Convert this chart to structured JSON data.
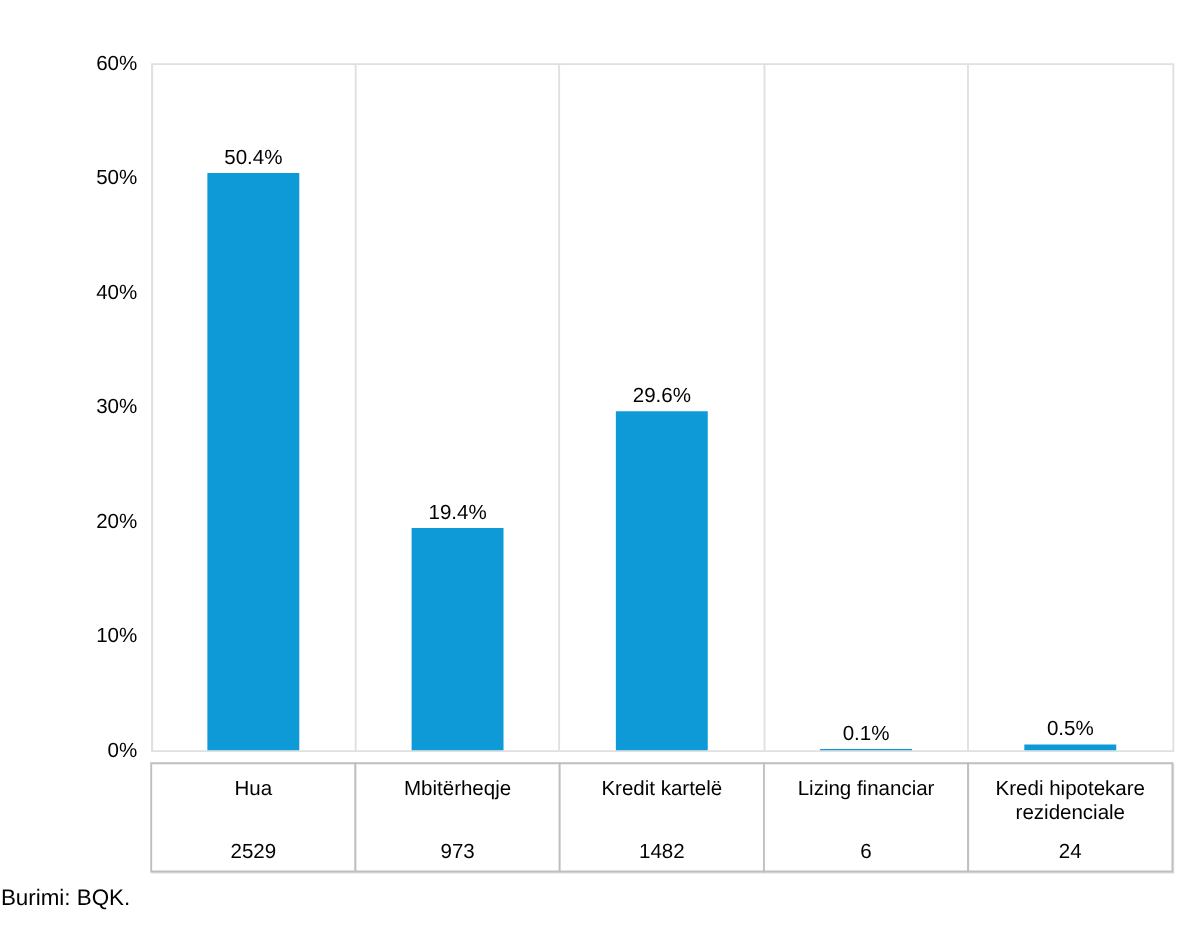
{
  "chart_data": {
    "type": "bar",
    "categories": [
      "Hua",
      "Mbitërheqje",
      "Kredit kartelë",
      "Lizing financiar",
      "Kredi hipotekare rezidenciale"
    ],
    "values": [
      50.4,
      19.4,
      29.6,
      0.1,
      0.5
    ],
    "value_labels": [
      "50.4%",
      "19.4%",
      "29.6%",
      "0.1%",
      "0.5%"
    ],
    "color": "#0e9ad7",
    "ylim": [
      0,
      60
    ],
    "yticks": [
      {
        "value": 0,
        "label": "0%"
      },
      {
        "value": 10,
        "label": "10%"
      },
      {
        "value": 20,
        "label": "20%"
      },
      {
        "value": 30,
        "label": "30%"
      },
      {
        "value": 40,
        "label": "40%"
      },
      {
        "value": 50,
        "label": "50%"
      },
      {
        "value": 60,
        "label": "60%"
      }
    ],
    "grid": "x",
    "annotations": [
      "2529",
      "973",
      "1482",
      "6",
      "24",
      "Burimi: BQK."
    ]
  }
}
